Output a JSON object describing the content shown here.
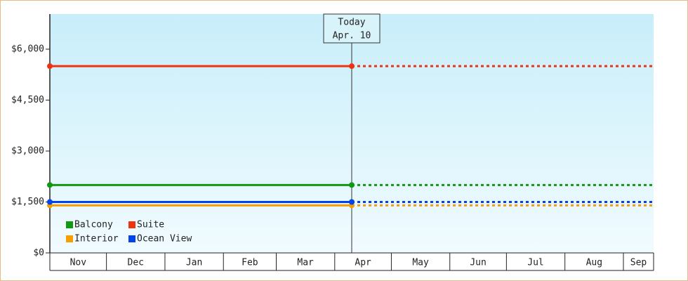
{
  "chart_data": {
    "type": "line",
    "xlim": [
      0,
      320
    ],
    "xticks": [
      0,
      30,
      61,
      92,
      120,
      151,
      181,
      212,
      242,
      273,
      304,
      320
    ],
    "categories": [
      "Nov",
      "Dec",
      "Jan",
      "Feb",
      "Mar",
      "Apr",
      "May",
      "Jun",
      "Jul",
      "Aug",
      "Sep"
    ],
    "ylim": [
      0,
      7034
    ],
    "yticks": [
      {
        "value": 0,
        "label": "$0"
      },
      {
        "value": 1500,
        "label": "$1,500"
      },
      {
        "value": 3000,
        "label": "$3,000"
      },
      {
        "value": 4500,
        "label": "$4,500"
      },
      {
        "value": 6000,
        "label": "$6,000"
      }
    ],
    "series": [
      {
        "name": "Balcony",
        "color": "#119911",
        "x": [
          0,
          160
        ],
        "values": [
          2000,
          2000
        ]
      },
      {
        "name": "Suite",
        "color": "#ee3311",
        "x": [
          0,
          160
        ],
        "values": [
          5500,
          5500
        ]
      },
      {
        "name": "Interior",
        "color": "#f5a000",
        "x": [
          0,
          160
        ],
        "values": [
          1400,
          1400
        ]
      },
      {
        "name": "Ocean View",
        "color": "#0044ee",
        "x": [
          0,
          160
        ],
        "values": [
          1500,
          1500
        ]
      }
    ],
    "annotation": {
      "x": 160,
      "lines": [
        "Today",
        "Apr. 10"
      ]
    },
    "forecast": true,
    "legend": "bottom-left"
  }
}
